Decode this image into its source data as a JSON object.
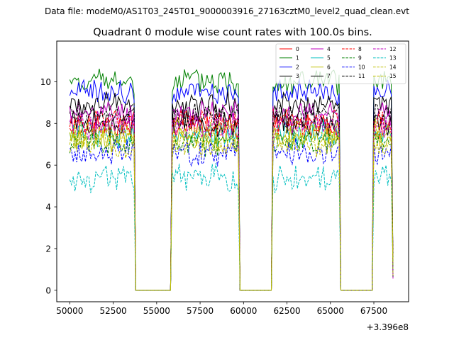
{
  "chart_data": {
    "type": "line",
    "suptitle": "Data file: modeM0/AS1T03_245T01_9000003916_27163cztM0_level2_quad_clean.evt",
    "title": "Quadrant 0 module wise count rates with 100.0s bins.",
    "xlabel": "",
    "ylabel": "",
    "x_offset_label": "+3.396e8",
    "xlim": [
      49250,
      69500
    ],
    "ylim": [
      -0.55,
      11.95
    ],
    "x_ticks": [
      {
        "value": 50000,
        "label": "50000"
      },
      {
        "value": 52500,
        "label": "52500"
      },
      {
        "value": 55000,
        "label": "55000"
      },
      {
        "value": 57500,
        "label": "57500"
      },
      {
        "value": 60000,
        "label": "60000"
      },
      {
        "value": 62500,
        "label": "62500"
      },
      {
        "value": 65000,
        "label": "65000"
      },
      {
        "value": 67500,
        "label": "67500"
      }
    ],
    "y_ticks": [
      {
        "value": 0,
        "label": "0"
      },
      {
        "value": 2,
        "label": "2"
      },
      {
        "value": 4,
        "label": "4"
      },
      {
        "value": 6,
        "label": "6"
      },
      {
        "value": 8,
        "label": "8"
      },
      {
        "value": 10,
        "label": "10"
      }
    ],
    "bin_size_s": 100,
    "active_intervals": [
      [
        50000,
        53700
      ],
      [
        55900,
        59700
      ],
      [
        61700,
        65500
      ],
      [
        67500,
        68600
      ]
    ],
    "legend": {
      "placement": "top-right",
      "columns": 4
    },
    "series": [
      {
        "name": "0",
        "color": "#ff0000",
        "dash": "solid",
        "mean": 7.9
      },
      {
        "name": "1",
        "color": "#008000",
        "dash": "solid",
        "mean": 10.0
      },
      {
        "name": "2",
        "color": "#0000ff",
        "dash": "solid",
        "mean": 9.5
      },
      {
        "name": "3",
        "color": "#000000",
        "dash": "solid",
        "mean": 8.9
      },
      {
        "name": "4",
        "color": "#bf00bf",
        "dash": "solid",
        "mean": 8.5
      },
      {
        "name": "5",
        "color": "#00bfbf",
        "dash": "solid",
        "mean": 7.5
      },
      {
        "name": "6",
        "color": "#bfbf00",
        "dash": "solid",
        "mean": 7.3
      },
      {
        "name": "7",
        "color": "#000000",
        "dash": "solid",
        "mean": 8.0
      },
      {
        "name": "8",
        "color": "#ff0000",
        "dash": "dashed",
        "mean": 8.1
      },
      {
        "name": "9",
        "color": "#008000",
        "dash": "dashed",
        "mean": 7.1
      },
      {
        "name": "10",
        "color": "#0000ff",
        "dash": "dashed",
        "mean": 6.6
      },
      {
        "name": "11",
        "color": "#000000",
        "dash": "dashed",
        "mean": 8.4
      },
      {
        "name": "12",
        "color": "#bf00bf",
        "dash": "dashed",
        "mean": 7.9
      },
      {
        "name": "13",
        "color": "#00bfbf",
        "dash": "dashed",
        "mean": 5.4
      },
      {
        "name": "14",
        "color": "#bfbf00",
        "dash": "dashed",
        "mean": 7.0
      },
      {
        "name": "15",
        "color": "#bfbf00",
        "dash": "dashed",
        "mean": 7.6
      }
    ]
  }
}
